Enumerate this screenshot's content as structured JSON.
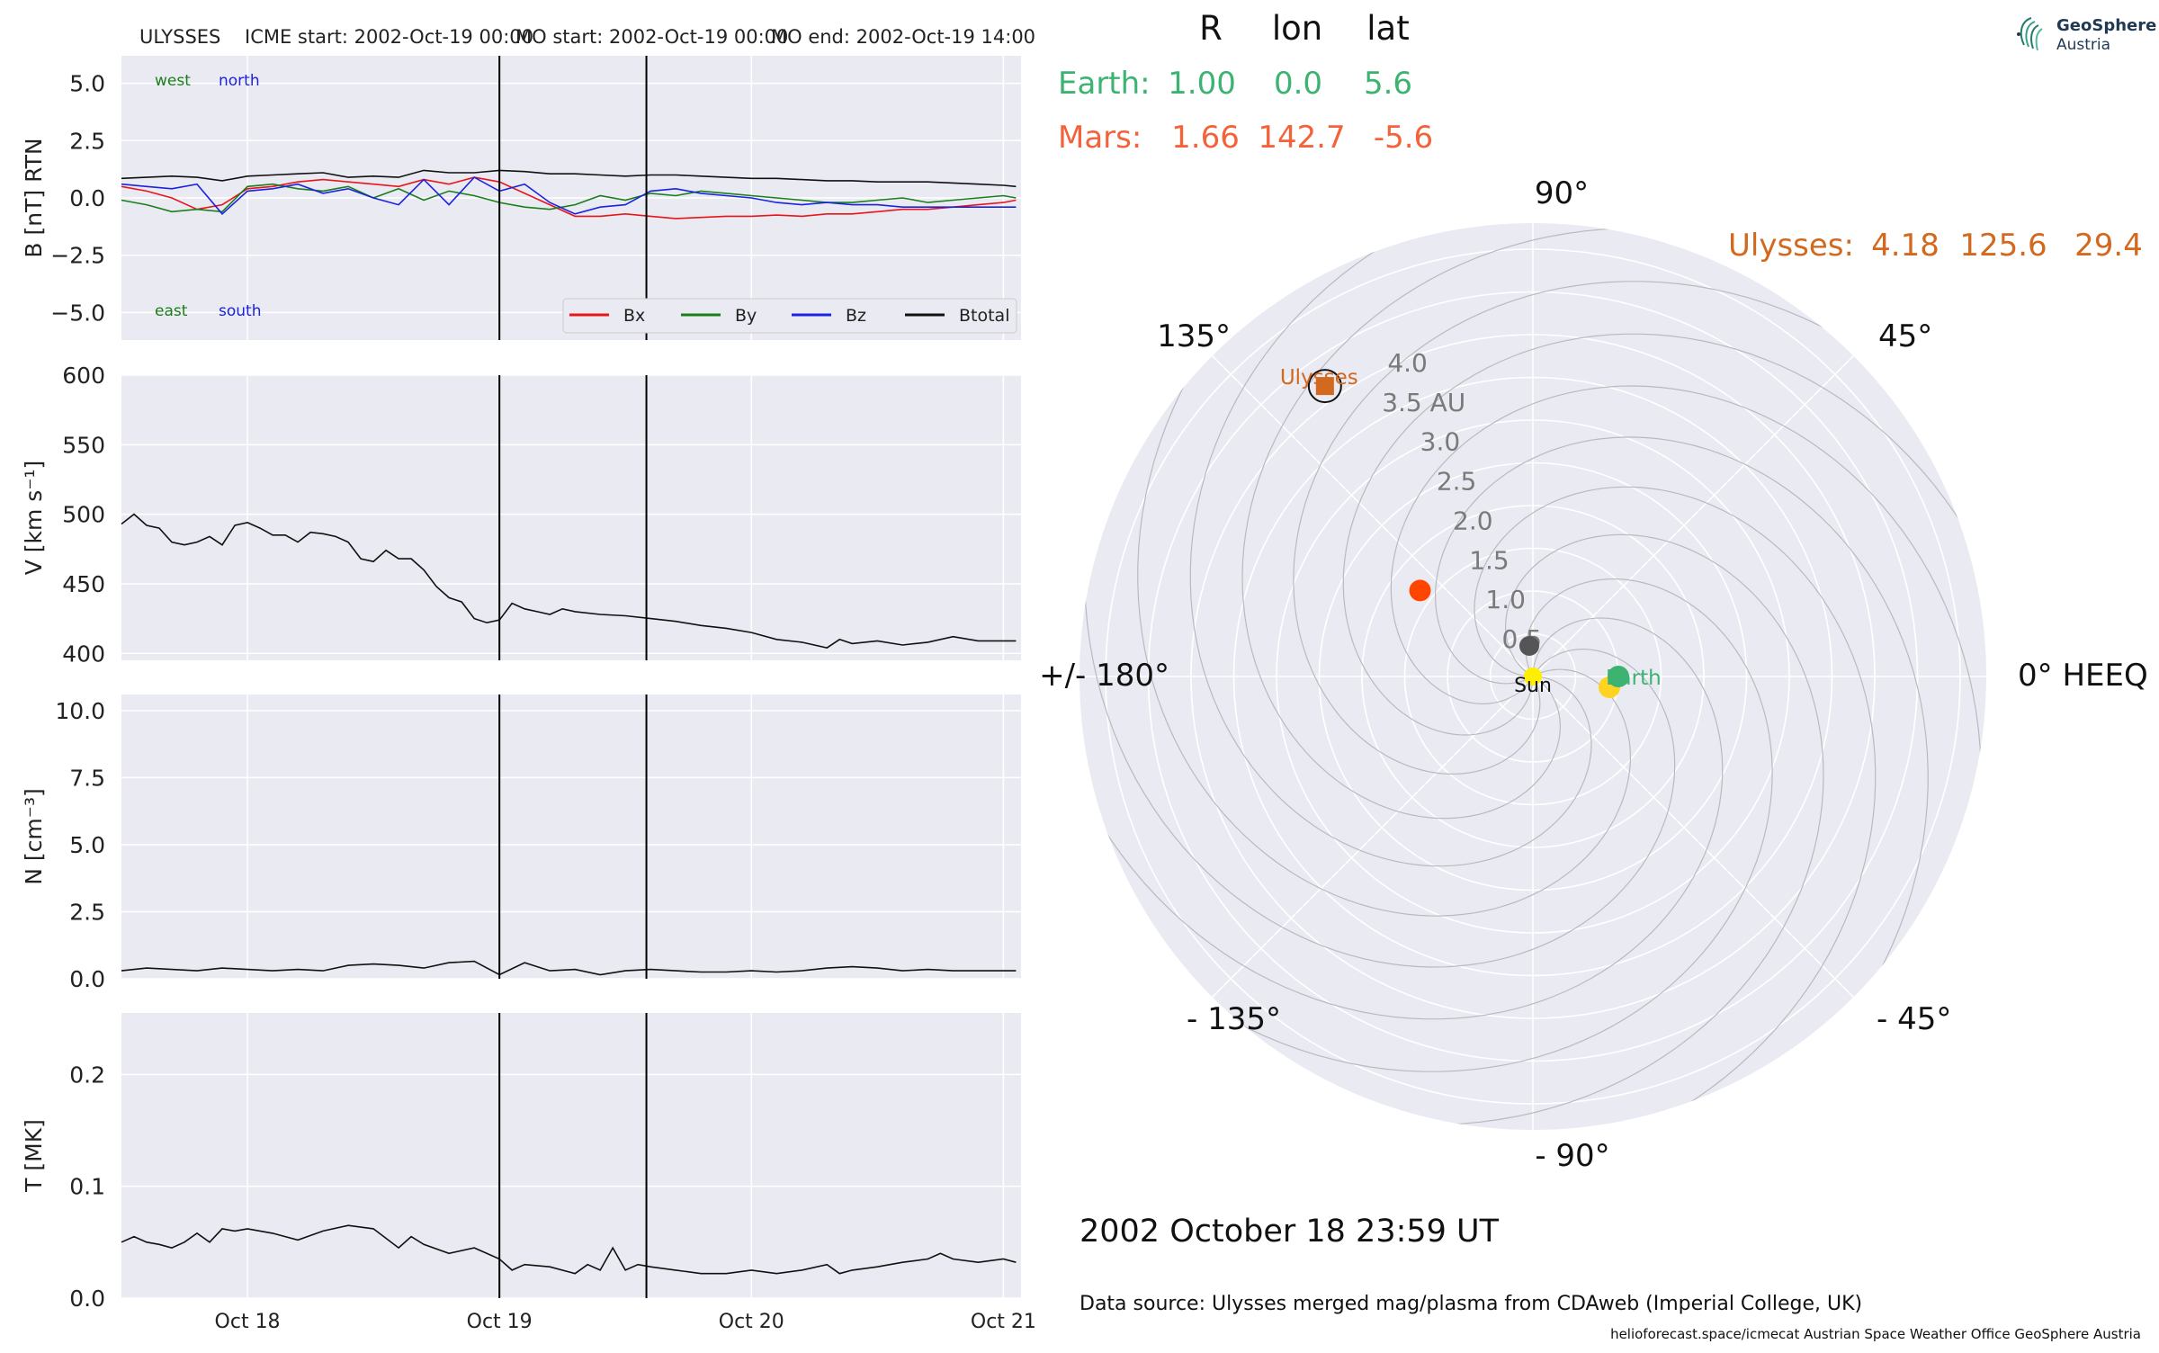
{
  "header": {
    "spacecraft": "ULYSSES",
    "icme_start": "ICME start: 2002-Oct-19 00:00",
    "mo_start": "MO start: 2002-Oct-19 00:00",
    "mo_end": "MO end: 2002-Oct-19 14:00"
  },
  "position_table": {
    "col_r": "R",
    "col_lon": "lon",
    "col_lat": "lat",
    "earth": {
      "label": "Earth:",
      "r": "1.00",
      "lon": "0.0",
      "lat": "5.6",
      "color": "#3cb371"
    },
    "mars": {
      "label": "Mars:",
      "r": "1.66",
      "lon": "142.7",
      "lat": "-5.6",
      "color": "#f4623a"
    },
    "ulysses": {
      "label": "Ulysses:",
      "r": "4.18",
      "lon": "125.6",
      "lat": "29.4",
      "color": "#d2691e"
    }
  },
  "polar": {
    "angle_labels": {
      "a90": "90°",
      "a45": "45°",
      "a135": "135°",
      "a180": "+/- 180°",
      "a0": "0° HEEQ",
      "am45": "- 45°",
      "am90": "- 90°",
      "am135": "- 135°"
    },
    "radial_labels": [
      "0.5",
      "1.0",
      "1.5",
      "2.0",
      "2.5",
      "3.0",
      "3.5 AU",
      "4.0"
    ],
    "sun_label": "Sun",
    "earth_label": "Earth",
    "ulysses_label": "Ulysses",
    "bodies": [
      {
        "name": "Sun",
        "r": 0.0,
        "lon": 0.0,
        "color": "#ffee00"
      },
      {
        "name": "Earth",
        "r": 1.0,
        "lon": 0.0,
        "color": "#3cb371"
      },
      {
        "name": "Mars",
        "r": 1.66,
        "lon": 142.7,
        "color": "#ff4500"
      },
      {
        "name": "Ulysses",
        "r": 4.18,
        "lon": 125.6,
        "color": "#d2691e"
      }
    ]
  },
  "footer": {
    "datetime": "2002 October 18  23:59 UT",
    "source": "Data source: Ulysses merged mag/plasma from CDAweb (Imperial College, UK)",
    "credits": "helioforecast.space/icmecat   Austrian Space Weather Office   GeoSphere Austria"
  },
  "logo": {
    "line1": "GeoSphere",
    "line2": "Austria"
  },
  "chart_data": [
    {
      "type": "line",
      "ylabel": "B [nT] RTN",
      "ylim": [
        -6.2,
        6.2
      ],
      "yticks": [
        "5.0",
        "2.5",
        "0.0",
        "−2.5",
        "−5.0"
      ],
      "ytick_values": [
        5.0,
        2.5,
        0.0,
        -2.5,
        -5.0
      ],
      "annotations": {
        "west": "west",
        "north": "north",
        "east": "east",
        "south": "south"
      },
      "legend": [
        "Bx",
        "By",
        "Bz",
        "Btotal"
      ],
      "x_days": [
        17.5,
        17.6,
        17.7,
        17.8,
        17.9,
        18.0,
        18.1,
        18.2,
        18.3,
        18.4,
        18.5,
        18.6,
        18.7,
        18.8,
        18.9,
        19.0,
        19.1,
        19.2,
        19.3,
        19.4,
        19.5,
        19.6,
        19.7,
        19.8,
        19.9,
        20.0,
        20.1,
        20.2,
        20.3,
        20.4,
        20.5,
        20.6,
        20.7,
        20.8,
        20.9,
        21.0,
        21.05
      ],
      "series": [
        {
          "name": "Bx",
          "color": "#e8161a",
          "values": [
            0.5,
            0.3,
            0.0,
            -0.5,
            -0.3,
            0.4,
            0.5,
            0.7,
            0.8,
            0.7,
            0.6,
            0.5,
            0.8,
            0.6,
            0.9,
            0.7,
            0.2,
            -0.3,
            -0.8,
            -0.8,
            -0.7,
            -0.8,
            -0.9,
            -0.85,
            -0.8,
            -0.8,
            -0.75,
            -0.8,
            -0.7,
            -0.7,
            -0.6,
            -0.5,
            -0.5,
            -0.4,
            -0.3,
            -0.2,
            -0.1
          ]
        },
        {
          "name": "By",
          "color": "#1a7f1a",
          "values": [
            -0.1,
            -0.3,
            -0.6,
            -0.5,
            -0.6,
            0.5,
            0.6,
            0.4,
            0.3,
            0.5,
            0.0,
            0.4,
            -0.1,
            0.3,
            0.1,
            -0.2,
            -0.4,
            -0.5,
            -0.3,
            0.1,
            -0.1,
            0.2,
            0.1,
            0.3,
            0.2,
            0.1,
            0.0,
            -0.1,
            -0.2,
            -0.2,
            -0.1,
            0.0,
            -0.2,
            -0.1,
            0.0,
            0.1,
            0.0
          ]
        },
        {
          "name": "Bz",
          "color": "#1b22e0",
          "values": [
            0.6,
            0.5,
            0.4,
            0.6,
            -0.7,
            0.3,
            0.4,
            0.6,
            0.2,
            0.4,
            0.0,
            -0.3,
            0.8,
            -0.3,
            0.9,
            0.3,
            0.6,
            -0.2,
            -0.7,
            -0.4,
            -0.3,
            0.3,
            0.4,
            0.2,
            0.1,
            0.0,
            -0.2,
            -0.3,
            -0.2,
            -0.3,
            -0.3,
            -0.4,
            -0.4,
            -0.4,
            -0.4,
            -0.4,
            -0.4
          ]
        },
        {
          "name": "Btotal",
          "color": "#111111",
          "values": [
            0.85,
            0.9,
            0.95,
            0.9,
            0.75,
            0.95,
            1.0,
            1.05,
            1.1,
            0.9,
            0.95,
            0.9,
            1.2,
            1.1,
            1.1,
            1.2,
            1.15,
            1.05,
            1.05,
            1.0,
            0.95,
            1.0,
            1.0,
            0.95,
            0.9,
            0.85,
            0.85,
            0.8,
            0.75,
            0.75,
            0.7,
            0.7,
            0.7,
            0.65,
            0.6,
            0.55,
            0.5
          ]
        }
      ]
    },
    {
      "type": "line",
      "ylabel": "V [km s⁻¹]",
      "ylim": [
        395,
        600
      ],
      "yticks": [
        "600",
        "550",
        "500",
        "450",
        "400"
      ],
      "ytick_values": [
        600,
        550,
        500,
        450,
        400
      ],
      "x_days": [
        17.5,
        17.55,
        17.6,
        17.65,
        17.7,
        17.75,
        17.8,
        17.85,
        17.9,
        17.95,
        18.0,
        18.05,
        18.1,
        18.15,
        18.2,
        18.25,
        18.3,
        18.35,
        18.4,
        18.45,
        18.5,
        18.55,
        18.6,
        18.65,
        18.7,
        18.75,
        18.8,
        18.85,
        18.9,
        18.95,
        19.0,
        19.05,
        19.1,
        19.15,
        19.2,
        19.25,
        19.3,
        19.4,
        19.5,
        19.6,
        19.7,
        19.8,
        19.9,
        20.0,
        20.1,
        20.2,
        20.3,
        20.35,
        20.4,
        20.5,
        20.6,
        20.7,
        20.8,
        20.9,
        21.0,
        21.05
      ],
      "series": [
        {
          "name": "",
          "color": "#111111",
          "values": [
            493,
            500,
            492,
            490,
            480,
            478,
            480,
            484,
            478,
            492,
            494,
            490,
            485,
            485,
            480,
            487,
            486,
            484,
            480,
            468,
            466,
            474,
            468,
            468,
            460,
            448,
            440,
            437,
            425,
            422,
            424,
            436,
            432,
            430,
            428,
            432,
            430,
            428,
            427,
            425,
            423,
            420,
            418,
            415,
            410,
            408,
            404,
            410,
            407,
            409,
            406,
            408,
            412,
            409,
            409,
            409
          ]
        }
      ]
    },
    {
      "type": "line",
      "ylabel": "N [cm⁻³]",
      "ylim": [
        0,
        10.6
      ],
      "yticks": [
        "10.0",
        "7.5",
        "5.0",
        "2.5",
        "0.0"
      ],
      "ytick_values": [
        10.0,
        7.5,
        5.0,
        2.5,
        0.0
      ],
      "x_days": [
        17.5,
        17.6,
        17.7,
        17.8,
        17.9,
        18.0,
        18.1,
        18.2,
        18.3,
        18.4,
        18.5,
        18.6,
        18.7,
        18.8,
        18.9,
        19.0,
        19.1,
        19.2,
        19.3,
        19.4,
        19.5,
        19.6,
        19.7,
        19.8,
        19.9,
        20.0,
        20.1,
        20.2,
        20.3,
        20.4,
        20.5,
        20.6,
        20.7,
        20.8,
        20.9,
        21.0,
        21.05
      ],
      "series": [
        {
          "name": "",
          "color": "#111111",
          "values": [
            0.3,
            0.4,
            0.35,
            0.3,
            0.4,
            0.35,
            0.3,
            0.35,
            0.3,
            0.5,
            0.55,
            0.5,
            0.4,
            0.6,
            0.65,
            0.15,
            0.6,
            0.3,
            0.35,
            0.15,
            0.3,
            0.35,
            0.3,
            0.25,
            0.25,
            0.3,
            0.25,
            0.3,
            0.4,
            0.45,
            0.4,
            0.3,
            0.35,
            0.3,
            0.3,
            0.3,
            0.3
          ]
        }
      ]
    },
    {
      "type": "line",
      "ylabel": "T [MK]",
      "ylim": [
        0,
        0.255
      ],
      "yticks": [
        "0.2",
        "0.1",
        "0.0"
      ],
      "ytick_values": [
        0.2,
        0.1,
        0.0
      ],
      "x_labels": [
        "Oct 18",
        "Oct 19",
        "Oct 20",
        "Oct 21"
      ],
      "x_label_days": [
        18,
        19,
        20,
        21
      ],
      "x_days": [
        17.5,
        17.55,
        17.6,
        17.65,
        17.7,
        17.75,
        17.8,
        17.85,
        17.9,
        17.95,
        18.0,
        18.1,
        18.2,
        18.3,
        18.4,
        18.5,
        18.6,
        18.65,
        18.7,
        18.8,
        18.9,
        19.0,
        19.05,
        19.1,
        19.2,
        19.3,
        19.35,
        19.4,
        19.45,
        19.5,
        19.55,
        19.6,
        19.7,
        19.8,
        19.9,
        20.0,
        20.1,
        20.2,
        20.3,
        20.35,
        20.4,
        20.5,
        20.6,
        20.7,
        20.75,
        20.8,
        20.9,
        21.0,
        21.05
      ],
      "series": [
        {
          "name": "",
          "color": "#111111",
          "values": [
            0.05,
            0.055,
            0.05,
            0.048,
            0.045,
            0.05,
            0.058,
            0.05,
            0.062,
            0.06,
            0.062,
            0.058,
            0.052,
            0.06,
            0.065,
            0.062,
            0.045,
            0.055,
            0.048,
            0.04,
            0.045,
            0.035,
            0.025,
            0.03,
            0.028,
            0.022,
            0.03,
            0.025,
            0.045,
            0.025,
            0.03,
            0.028,
            0.025,
            0.022,
            0.022,
            0.025,
            0.022,
            0.025,
            0.03,
            0.022,
            0.025,
            0.028,
            0.032,
            0.035,
            0.04,
            0.035,
            0.032,
            0.035,
            0.032
          ]
        }
      ]
    }
  ],
  "event_lines_days": [
    19.0,
    19.5833
  ]
}
